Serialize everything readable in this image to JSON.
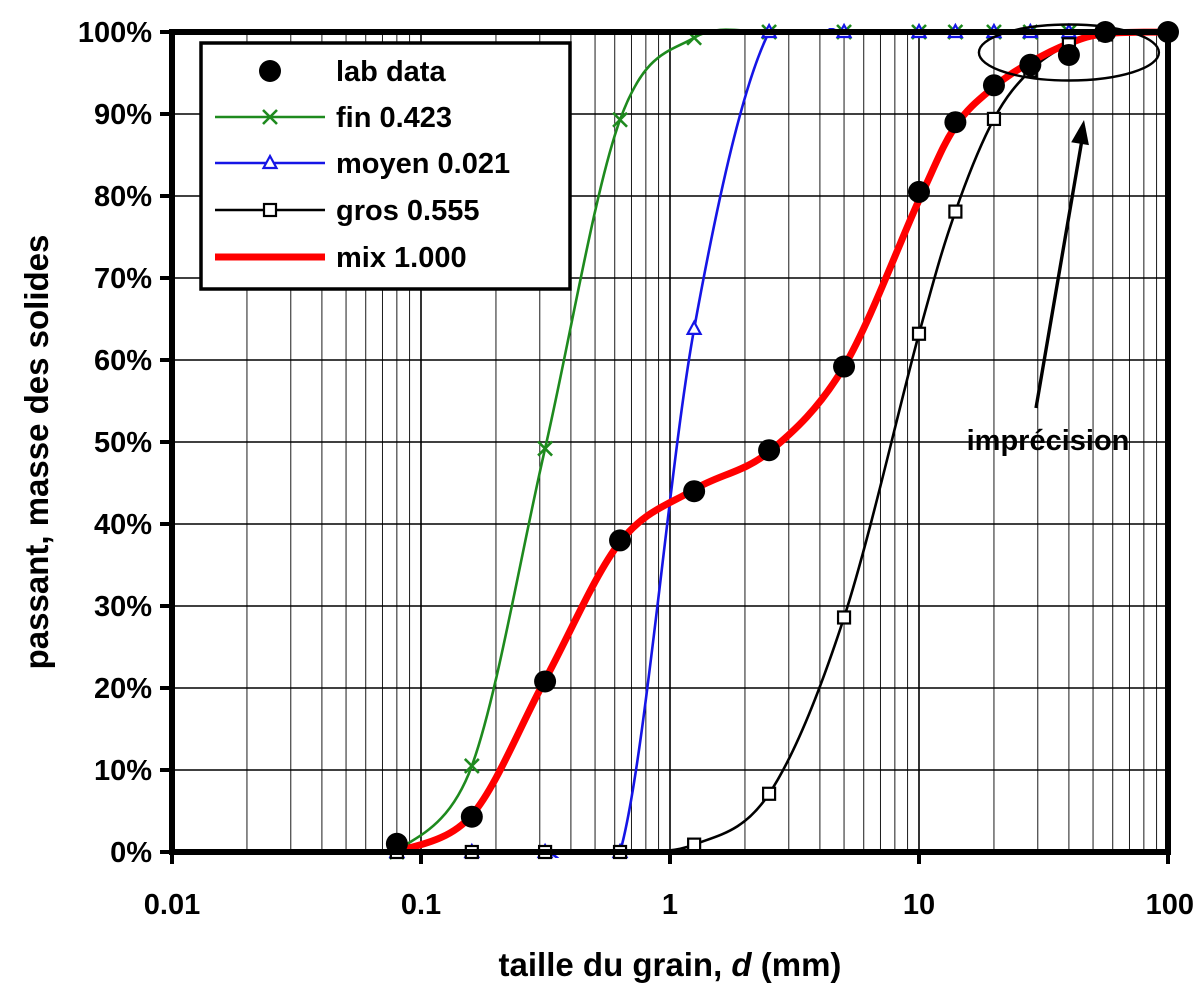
{
  "chart_data": {
    "type": "line",
    "xscale": "log",
    "xlim": [
      0.01,
      100
    ],
    "ylim": [
      0,
      100
    ],
    "grid": true,
    "legend_position": "top-left",
    "xlabel_parts": {
      "prefix": "taille du grain, ",
      "italic": "d",
      "suffix": " (mm)"
    },
    "ylabel": "passant, masse des solides",
    "x_ticks": [
      {
        "value": 0.01,
        "label": "0.01"
      },
      {
        "value": 0.1,
        "label": "0.1"
      },
      {
        "value": 1,
        "label": "1"
      },
      {
        "value": 10,
        "label": "10"
      },
      {
        "value": 100,
        "label": "100"
      }
    ],
    "y_ticks": [
      {
        "value": 0,
        "label": "0%"
      },
      {
        "value": 10,
        "label": "10%"
      },
      {
        "value": 20,
        "label": "20%"
      },
      {
        "value": 30,
        "label": "30%"
      },
      {
        "value": 40,
        "label": "40%"
      },
      {
        "value": 50,
        "label": "50%"
      },
      {
        "value": 60,
        "label": "60%"
      },
      {
        "value": 70,
        "label": "70%"
      },
      {
        "value": 80,
        "label": "80%"
      },
      {
        "value": 90,
        "label": "90%"
      },
      {
        "value": 100,
        "label": "100%"
      }
    ],
    "series": [
      {
        "name": "lab data",
        "style": "markers",
        "marker": "circle",
        "color": "#000000",
        "x": [
          0.08,
          0.16,
          0.315,
          0.63,
          1.25,
          2.5,
          5,
          10,
          14,
          20,
          28,
          40,
          56,
          100
        ],
        "y": [
          1,
          4.3,
          20.8,
          38,
          44,
          49,
          59.2,
          80.5,
          89,
          93.5,
          96,
          97.2,
          100,
          100
        ]
      },
      {
        "name": "fin 0.423",
        "style": "line-markers",
        "marker": "x",
        "color": "#1e8a1e",
        "x": [
          0.08,
          0.16,
          0.315,
          0.63,
          1.25,
          2.5,
          5,
          10,
          14,
          20,
          28,
          40,
          56,
          100
        ],
        "y": [
          0,
          10.5,
          49.2,
          89.3,
          99.3,
          100,
          100,
          100,
          100,
          100,
          100,
          100,
          100,
          100
        ]
      },
      {
        "name": "moyen 0.021",
        "style": "line-markers",
        "marker": "triangle",
        "color": "#1515e6",
        "x": [
          0.08,
          0.16,
          0.315,
          0.63,
          1.25,
          2.5,
          5,
          10,
          14,
          20,
          28,
          40,
          56,
          100
        ],
        "y": [
          0,
          0,
          0,
          0,
          63.8,
          100,
          100,
          100,
          100,
          100,
          100,
          100,
          100,
          100
        ]
      },
      {
        "name": "gros 0.555",
        "style": "line-markers",
        "marker": "square",
        "color": "#000000",
        "x": [
          0.08,
          0.16,
          0.315,
          0.63,
          1.25,
          2.5,
          5,
          10,
          14,
          20,
          28,
          40,
          56,
          100
        ],
        "y": [
          0,
          0,
          0,
          0,
          0.9,
          7.1,
          28.6,
          63.2,
          78.1,
          89.4,
          95.3,
          98.5,
          99.7,
          100
        ]
      },
      {
        "name": "mix 1.000",
        "style": "line",
        "marker": "none",
        "color": "#ff0000",
        "x": [
          0.08,
          0.16,
          0.315,
          0.63,
          1.25,
          2.5,
          5,
          10,
          14,
          20,
          28,
          40,
          56,
          100
        ],
        "y": [
          0,
          4.5,
          21,
          37.8,
          44.2,
          48.8,
          59.2,
          79.5,
          88.5,
          93.3,
          96.3,
          98.6,
          99.8,
          100
        ]
      }
    ],
    "annotation": {
      "text": "imprécision",
      "ellipse_center": {
        "x": 40,
        "y": 97.5
      }
    }
  }
}
